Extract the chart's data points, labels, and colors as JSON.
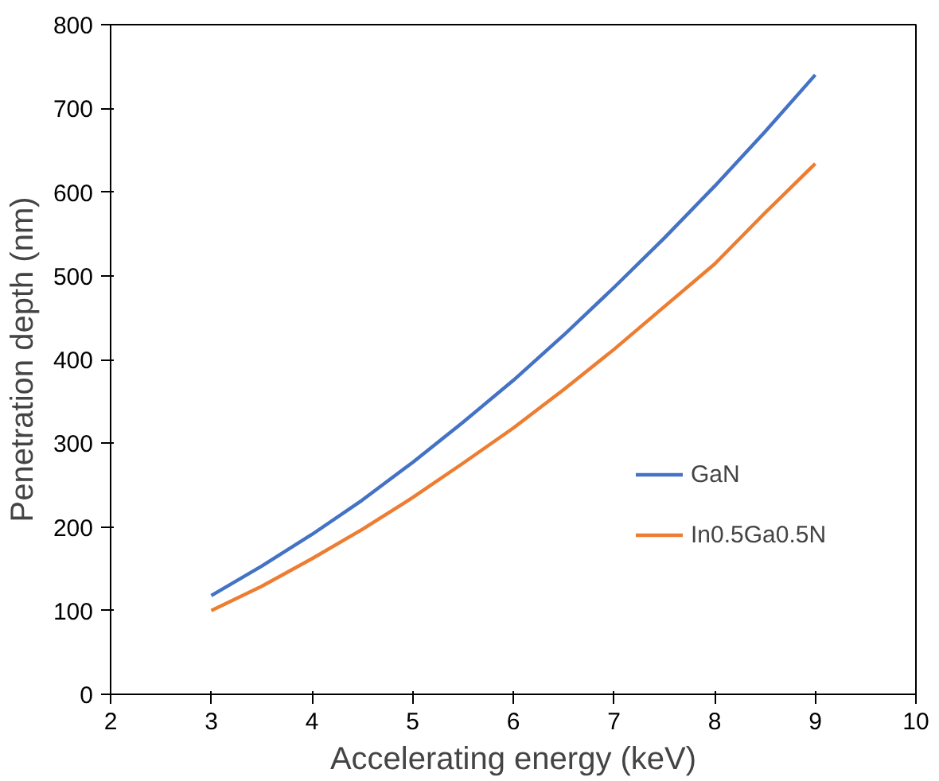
{
  "chart_data": {
    "type": "line",
    "xlabel": "Accelerating energy (keV)",
    "ylabel": "Penetration depth (nm)",
    "x": [
      3,
      3.5,
      4,
      4.5,
      5,
      5.5,
      6,
      6.5,
      7,
      7.5,
      8,
      8.5,
      9
    ],
    "series": [
      {
        "name": "GaN",
        "color": "#4472c4",
        "values": [
          118,
          153,
          191,
          232,
          277,
          325,
          375,
          429,
          486,
          545,
          607,
          672,
          740
        ]
      },
      {
        "name": "In0.5Ga0.5N",
        "color": "#ed7d31",
        "values": [
          100,
          129,
          162,
          197,
          235,
          276,
          318,
          364,
          412,
          463,
          514,
          575,
          634
        ]
      }
    ],
    "xlim": [
      2,
      10
    ],
    "xticks": [
      2,
      3,
      4,
      5,
      6,
      7,
      8,
      9,
      10
    ],
    "ylim": [
      0,
      800
    ],
    "yticks": [
      0,
      100,
      200,
      300,
      400,
      500,
      600,
      700,
      800
    ],
    "grid": false,
    "legend": "right",
    "marker": "none",
    "line_style": "solid"
  }
}
